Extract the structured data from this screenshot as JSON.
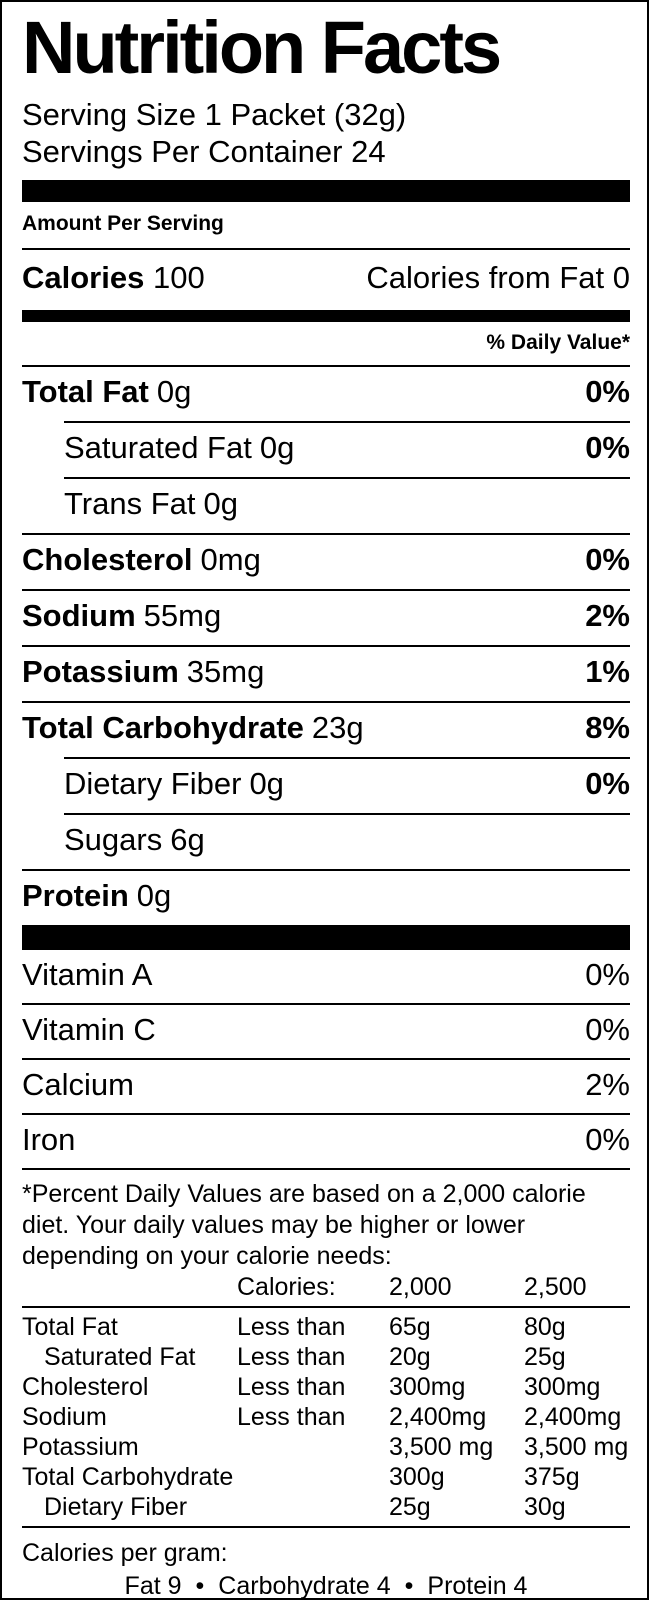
{
  "label": {
    "colors": {
      "text": "#000000",
      "background": "#ffffff"
    },
    "title": "Nutrition Facts",
    "serving_size": "Serving Size 1 Packet (32g)",
    "servings_per_container": "Servings Per Container 24",
    "amount_per_serving": "Amount Per Serving",
    "calories": {
      "label": "Calories",
      "value": "100",
      "from_fat": "Calories from Fat 0"
    },
    "daily_value_header": "% Daily Value*",
    "nutrients": [
      {
        "name": "Total Fat",
        "amount": "0g",
        "dv": "0%"
      },
      {
        "name": "Saturated Fat",
        "amount": "0g",
        "dv": "0%"
      },
      {
        "name": "Trans Fat",
        "amount": "0g",
        "dv": ""
      },
      {
        "name": "Cholesterol",
        "amount": "0mg",
        "dv": "0%"
      },
      {
        "name": "Sodium",
        "amount": "55mg",
        "dv": "2%"
      },
      {
        "name": "Potassium",
        "amount": "35mg",
        "dv": "1%"
      },
      {
        "name": "Total Carbohydrate",
        "amount": "23g",
        "dv": "8%"
      },
      {
        "name": "Dietary Fiber",
        "amount": "0g",
        "dv": "0%"
      },
      {
        "name": "Sugars",
        "amount": "6g",
        "dv": ""
      },
      {
        "name": "Protein",
        "amount": "0g",
        "dv": ""
      }
    ],
    "vitamins": [
      {
        "name": "Vitamin A",
        "dv": "0%"
      },
      {
        "name": "Vitamin C",
        "dv": "0%"
      },
      {
        "name": "Calcium",
        "dv": "2%"
      },
      {
        "name": "Iron",
        "dv": "0%"
      }
    ],
    "footnote": "*Percent Daily Values are based on a 2,000 calorie diet. Your daily values may be higher or lower depending on your calorie needs:",
    "dv_table": {
      "header": {
        "label": "Calories:",
        "v2000": "2,000",
        "v2500": "2,500"
      },
      "rows": [
        {
          "name": "Total Fat",
          "qual": "Less than",
          "v2000": "65g",
          "v2500": "80g"
        },
        {
          "name": "Saturated Fat",
          "qual": "Less than",
          "v2000": "20g",
          "v2500": "25g"
        },
        {
          "name": "Cholesterol",
          "qual": "Less than",
          "v2000": "300mg",
          "v2500": "300mg"
        },
        {
          "name": "Sodium",
          "qual": "Less than",
          "v2000": "2,400mg",
          "v2500": "2,400mg"
        },
        {
          "name": "Potassium",
          "qual": "",
          "v2000": "3,500 mg",
          "v2500": "3,500 mg"
        },
        {
          "name": "Total Carbohydrate",
          "qual": "",
          "v2000": "300g",
          "v2500": "375g"
        },
        {
          "name": "Dietary Fiber",
          "qual": "",
          "v2000": "25g",
          "v2500": "30g"
        }
      ]
    },
    "calories_per_gram": {
      "label": "Calories per gram:",
      "fat": "Fat 9",
      "carbohydrate": "Carbohydrate 4",
      "protein": "Protein 4",
      "bullet": "•"
    }
  }
}
